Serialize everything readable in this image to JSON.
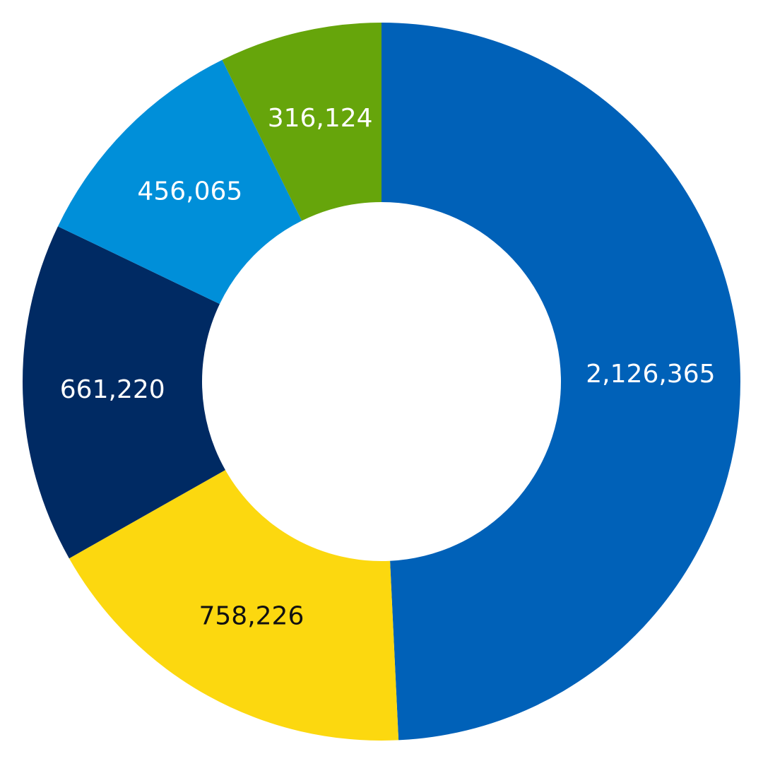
{
  "chart_data": {
    "type": "donut",
    "values": [
      2126365,
      758226,
      661220,
      456065,
      316124
    ],
    "value_labels": [
      "2,126,365",
      "758,226",
      "661,220",
      "456,065",
      "316,124"
    ],
    "colors": [
      "#0061b8",
      "#fcd80f",
      "#002a63",
      "#008fd9",
      "#66a50b"
    ]
  }
}
